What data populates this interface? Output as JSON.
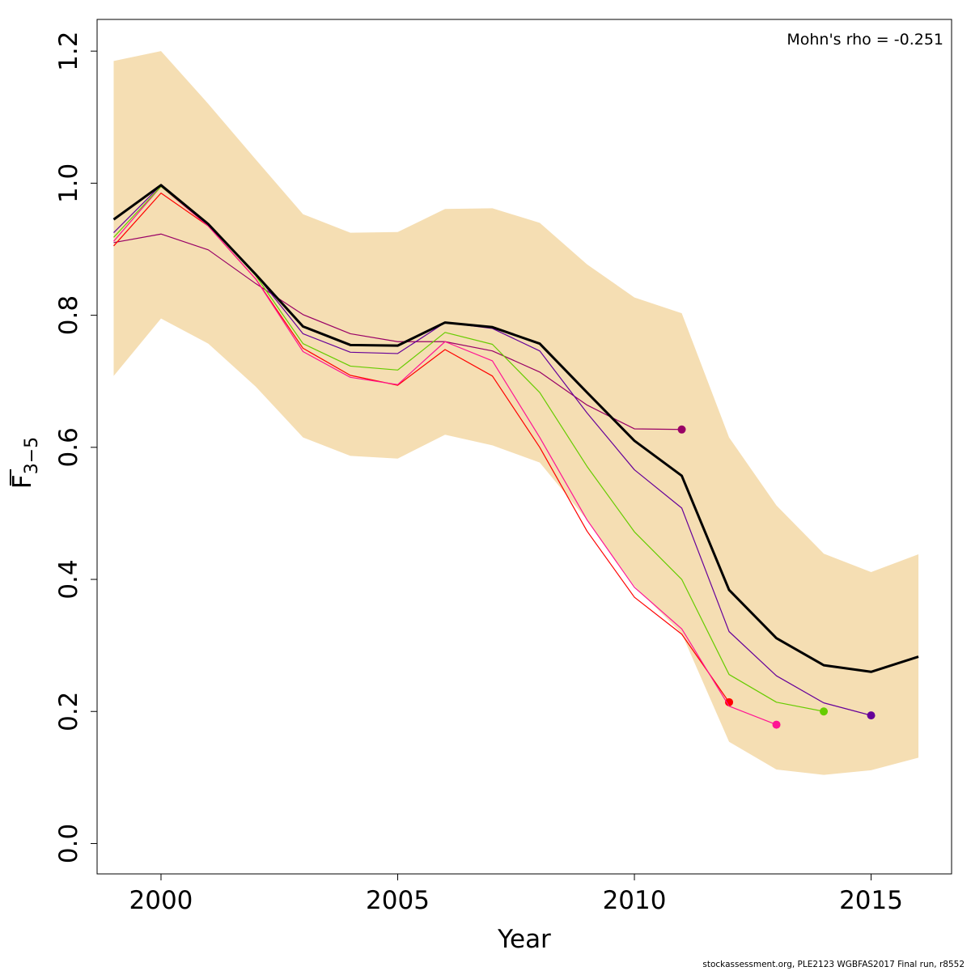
{
  "chart_data": {
    "type": "line",
    "xlabel": "Year",
    "ylabel_main": "F",
    "ylabel_sub": "3−5",
    "annotation": "Mohn's rho = -0.251",
    "xlim": [
      1998.65,
      2016.7
    ],
    "ylim": [
      -0.046,
      1.248
    ],
    "x_ticks": [
      2000,
      2005,
      2010,
      2015
    ],
    "x_tick_labels": [
      "2000",
      "2005",
      "2010",
      "2015"
    ],
    "y_ticks": [
      0.0,
      0.2,
      0.4,
      0.6,
      0.8,
      1.0,
      1.2
    ],
    "y_tick_labels": [
      "0.0",
      "0.2",
      "0.4",
      "0.6",
      "0.8",
      "1.0",
      "1.2"
    ],
    "grid": false,
    "band": {
      "name": "confidence-interval",
      "color": "#F5DEB3",
      "x": [
        1999,
        2000,
        2001,
        2002,
        2003,
        2004,
        2005,
        2006,
        2007,
        2008,
        2009,
        2010,
        2011,
        2012,
        2013,
        2014,
        2015,
        2016
      ],
      "upper": [
        1.185,
        1.2,
        1.12,
        1.036,
        0.953,
        0.925,
        0.926,
        0.961,
        0.962,
        0.94,
        0.877,
        0.827,
        0.803,
        0.615,
        0.512,
        0.439,
        0.411,
        0.438
      ],
      "lower": [
        0.708,
        0.795,
        0.757,
        0.692,
        0.615,
        0.587,
        0.583,
        0.619,
        0.603,
        0.577,
        0.49,
        0.39,
        0.318,
        0.154,
        0.112,
        0.104,
        0.111,
        0.13
      ]
    },
    "series": [
      {
        "name": "retro-2011",
        "color": "#990066",
        "x": [
          1999,
          2000,
          2001,
          2002,
          2003,
          2004,
          2005,
          2006,
          2007,
          2008,
          2009,
          2010,
          2011
        ],
        "values": [
          0.91,
          0.923,
          0.899,
          0.848,
          0.801,
          0.772,
          0.76,
          0.76,
          0.746,
          0.714,
          0.664,
          0.628,
          0.627
        ]
      },
      {
        "name": "retro-2012",
        "color": "#FF0000",
        "x": [
          1999,
          2000,
          2001,
          2002,
          2003,
          2004,
          2005,
          2006,
          2007,
          2008,
          2009,
          2010,
          2011,
          2012
        ],
        "values": [
          0.905,
          0.985,
          0.935,
          0.855,
          0.75,
          0.709,
          0.694,
          0.748,
          0.708,
          0.6,
          0.473,
          0.373,
          0.317,
          0.214
        ]
      },
      {
        "name": "retro-2013",
        "color": "#FF1493",
        "x": [
          1999,
          2000,
          2001,
          2002,
          2003,
          2004,
          2005,
          2006,
          2007,
          2008,
          2009,
          2010,
          2011,
          2012,
          2013
        ],
        "values": [
          0.912,
          0.995,
          0.935,
          0.855,
          0.745,
          0.706,
          0.695,
          0.76,
          0.731,
          0.615,
          0.49,
          0.388,
          0.325,
          0.208,
          0.18
        ]
      },
      {
        "name": "retro-2014",
        "color": "#66CC00",
        "x": [
          1999,
          2000,
          2001,
          2002,
          2003,
          2004,
          2005,
          2006,
          2007,
          2008,
          2009,
          2010,
          2011,
          2012,
          2013,
          2014
        ],
        "values": [
          0.918,
          0.995,
          0.937,
          0.86,
          0.757,
          0.723,
          0.717,
          0.774,
          0.756,
          0.683,
          0.571,
          0.472,
          0.4,
          0.256,
          0.214,
          0.2
        ]
      },
      {
        "name": "retro-2015",
        "color": "#660099",
        "x": [
          1999,
          2000,
          2001,
          2002,
          2003,
          2004,
          2005,
          2006,
          2007,
          2008,
          2009,
          2010,
          2011,
          2012,
          2013,
          2014,
          2015
        ],
        "values": [
          0.925,
          0.997,
          0.938,
          0.862,
          0.772,
          0.744,
          0.742,
          0.789,
          0.78,
          0.746,
          0.652,
          0.566,
          0.508,
          0.321,
          0.254,
          0.213,
          0.194
        ]
      },
      {
        "name": "final-run",
        "color": "#000000",
        "x": [
          1999,
          2000,
          2001,
          2002,
          2003,
          2004,
          2005,
          2006,
          2007,
          2008,
          2009,
          2010,
          2011,
          2012,
          2013,
          2014,
          2015,
          2016
        ],
        "values": [
          0.945,
          0.997,
          0.938,
          0.862,
          0.783,
          0.755,
          0.754,
          0.789,
          0.782,
          0.757,
          0.683,
          0.61,
          0.557,
          0.384,
          0.311,
          0.27,
          0.26,
          0.283
        ]
      }
    ]
  },
  "footer": "stockassessment.org, PLE2123  WGBFAS2017  Final  run, r8552"
}
